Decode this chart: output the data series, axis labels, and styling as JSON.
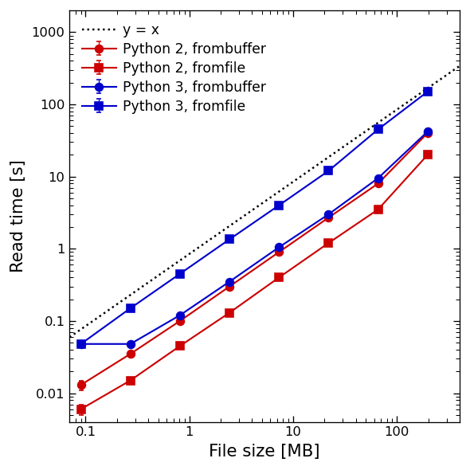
{
  "xlabel": "File size [MB]",
  "ylabel": "Read time [s]",
  "xlim": [
    0.07,
    400
  ],
  "ylim": [
    0.004,
    2000
  ],
  "file_sizes": [
    0.09,
    0.27,
    0.81,
    2.43,
    7.29,
    21.87,
    65.61,
    196.83
  ],
  "py2_frombuffer": [
    0.013,
    0.035,
    0.1,
    0.3,
    0.9,
    2.7,
    8.0,
    40.0
  ],
  "py2_fromfile": [
    0.006,
    0.015,
    0.045,
    0.13,
    0.4,
    1.2,
    3.5,
    20.0
  ],
  "py3_frombuffer": [
    0.048,
    0.048,
    0.12,
    0.35,
    1.05,
    3.0,
    9.5,
    42.0
  ],
  "py3_fromfile": [
    0.048,
    0.15,
    0.45,
    1.35,
    4.0,
    12.0,
    45.0,
    150.0
  ],
  "color_py2": "#cc0000",
  "color_py3": "#0000cc",
  "legend_labels": [
    "Python 2, frombuffer",
    "Python 2, fromfile",
    "Python 3, frombuffer",
    "Python 3, fromfile",
    "y = x"
  ],
  "yerr_py2_fb": [
    0.002,
    0.003,
    0.005,
    0.015,
    0.05,
    0.15,
    0.5,
    2.0
  ],
  "yerr_py2_ff": [
    0.001,
    0.001,
    0.003,
    0.008,
    0.025,
    0.08,
    0.25,
    1.5
  ],
  "yerr_py3_fb": [
    0.003,
    0.003,
    0.007,
    0.02,
    0.06,
    0.2,
    0.6,
    2.5
  ],
  "yerr_py3_ff": [
    0.003,
    0.01,
    0.03,
    0.09,
    0.25,
    0.8,
    3.0,
    10.0
  ],
  "figsize": [
    5.0,
    5.0
  ],
  "dpi": 118
}
